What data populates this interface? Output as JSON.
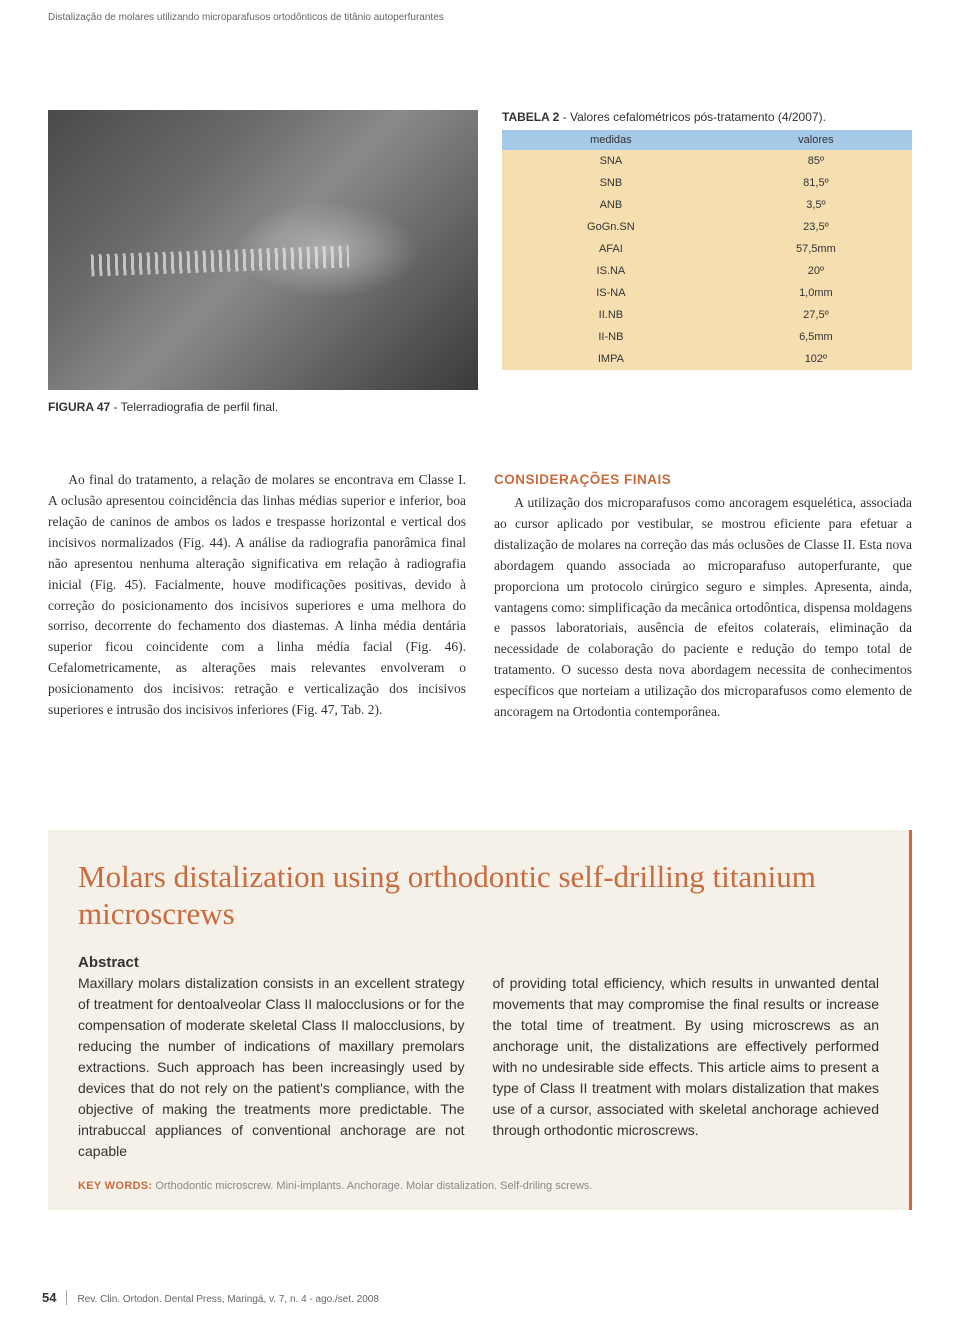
{
  "running_header": "Distalização de molares utilizando microparafusos ortodônticos de titânio autoperfurantes",
  "figure": {
    "label": "FIGURA 47",
    "caption": " - Telerradiografia de perfil final."
  },
  "table": {
    "title_label": "TABELA 2",
    "title_rest": " - Valores cefalométricos pós-tratamento (4/2007).",
    "header_bg": "#a7c9e8",
    "body_bg": "#f5dfb0",
    "columns": [
      "medidas",
      "valores"
    ],
    "rows": [
      {
        "m": "SNA",
        "v": "85º"
      },
      {
        "m": "SNB",
        "v": "81,5º"
      },
      {
        "m": "ANB",
        "v": "3,5º"
      },
      {
        "m": "GoGn.SN",
        "v": "23,5º"
      },
      {
        "m": "AFAI",
        "v": "57,5mm"
      },
      {
        "m": "IS.NA",
        "v": "20º"
      },
      {
        "m": "IS-NA",
        "v": "1,0mm"
      },
      {
        "m": "II.NB",
        "v": "27,5º"
      },
      {
        "m": "II-NB",
        "v": "6,5mm"
      },
      {
        "m": "IMPA",
        "v": "102º"
      }
    ]
  },
  "body": {
    "left": "Ao final do tratamento, a relação de molares se encontrava em Classe I. A oclusão apresentou coincidência das linhas médias superior e inferior, boa relação de caninos de ambos os lados e trespasse horizontal e vertical dos incisivos normalizados (Fig. 44). A análise da radiografia panorâmica final não apresentou nenhuma alteração significativa em relação à radiografia inicial (Fig. 45). Facialmente, houve modificações positivas, devido à correção do posicionamento dos incisivos superiores e uma melhora do sorriso, decorrente do fechamento dos diastemas. A linha média dentária superior ficou coincidente com a linha média facial (Fig. 46). Cefalometricamente, as alterações mais relevantes envolveram o posicionamento dos incisivos: retração e verticalização dos incisivos superiores e intrusão dos incisivos inferiores (Fig. 47, Tab. 2).",
    "right_heading": "CONSIDERAÇÕES FINAIS",
    "right": "A utilização dos microparafusos como ancoragem esquelética, associada ao cursor aplicado por vestibular, se mostrou eficiente para efetuar a distalização de molares na correção das más oclusões de Classe II. Esta nova abordagem quando associada ao microparafuso autoperfurante, que proporciona um protocolo cirúrgico seguro e simples. Apresenta, ainda, vantagens como: simplificação da mecânica ortodôntica, dispensa moldagens e passos laboratoriais, ausência de efeitos colaterais, eliminação da necessidade de colaboração do paciente e redução do tempo total de tratamento. O sucesso desta nova abordagem necessita de conhecimentos específicos que norteiam a utilização dos microparafusos como elemento de ancoragem na Ortodontia contemporânea."
  },
  "abstract": {
    "title": "Molars distalization using orthodontic self-drilling titanium microscrews",
    "heading": "Abstract",
    "left": "Maxillary molars distalization consists in an excellent strategy of treatment for dentoalveolar Class II malocclusions or for the compensation of moderate skeletal Class II malocclusions, by reducing the number of indications of maxillary premolars extractions. Such approach has been increasingly used by devices that do not rely on the patient's compliance, with the objective of making the treatments more predictable. The intrabuccal appliances of conventional anchorage are not capable",
    "right": "of providing total efficiency, which results in unwanted dental movements that may compromise the final results or increase the total time of treatment. By using microscrews as an anchorage unit, the distalizations are effectively performed with no undesirable side effects. This article aims to present a type of Class II treatment with molars distalization that makes use of a cursor, associated with skeletal anchorage achieved through orthodontic microscrews.",
    "keywords_label": "KEY WORDS:",
    "keywords": " Orthodontic microscrew. Mini-implants. Anchorage. Molar distalization. Self-driling screws.",
    "bg": "#f5f1e8",
    "accent": "#c96b3e"
  },
  "footer": {
    "page": "54",
    "citation": "Rev. Clin. Ortodon. Dental Press, Maringá, v. 7, n. 4 - ago./set. 2008"
  }
}
